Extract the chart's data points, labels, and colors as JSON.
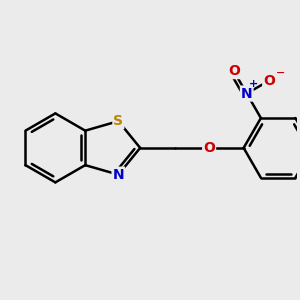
{
  "background_color": "#ebebeb",
  "bond_color": "#000000",
  "bond_width": 1.8,
  "S_color": "#b8860b",
  "N_color": "#0000cc",
  "O_color": "#cc0000",
  "font_size": 10,
  "fig_width": 3.0,
  "fig_height": 3.0,
  "xlim": [
    -2.8,
    4.2
  ],
  "ylim": [
    -2.2,
    2.2
  ]
}
